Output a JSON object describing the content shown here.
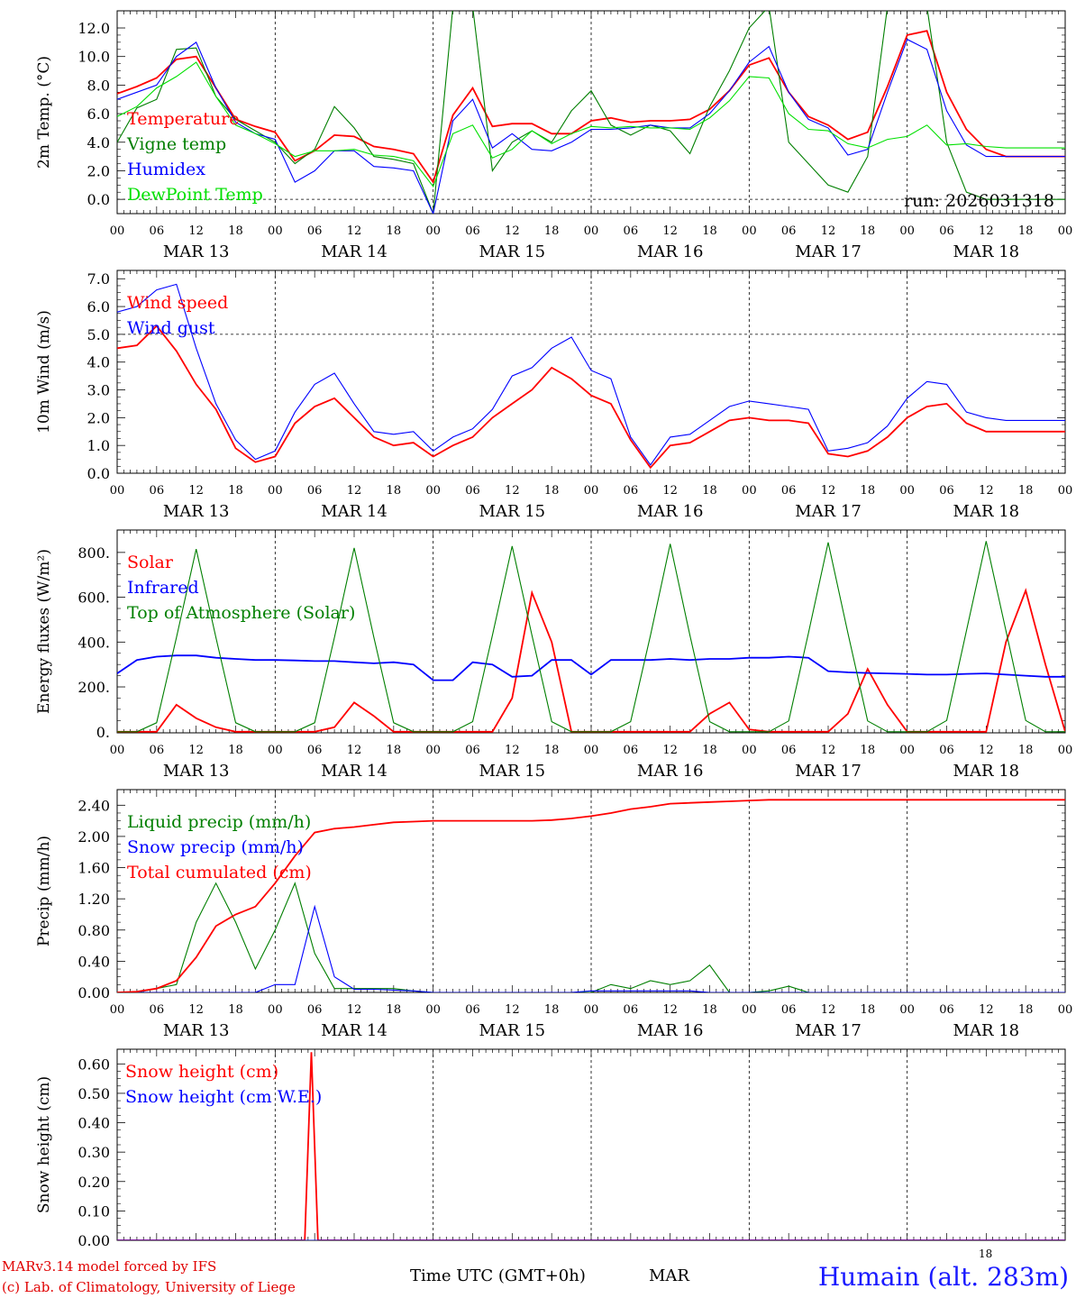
{
  "footer": {
    "model": "MARv3.14 model forced by IFS",
    "credit": "(c) Lab. of Climatology, University of Liege",
    "axis_title": "Time UTC (GMT+0h)",
    "month": "MAR",
    "day": "18",
    "station": "Humain (alt. 283m)"
  },
  "colors": {
    "red": "#ff0000",
    "green": "#007f00",
    "blue": "#0000ff",
    "lightgreen": "#00e000"
  },
  "x_axis": {
    "hour_ticks": [
      "00",
      "06",
      "12",
      "18"
    ],
    "days": [
      "MAR 13",
      "MAR 14",
      "MAR 15",
      "MAR 16",
      "MAR 17",
      "MAR 18"
    ],
    "end_label": "00"
  },
  "chart_data": [
    {
      "type": "line",
      "ylabel": "2m Temp. (°C)",
      "ylim": [
        -1,
        13.2
      ],
      "yticks": [
        "0.0",
        "2.0",
        "4.0",
        "6.0",
        "8.0",
        "10.0",
        "12.0"
      ],
      "ytick_values": [
        0,
        2,
        4,
        6,
        8,
        10,
        12
      ],
      "ref_line": 0,
      "annotation": "run: 2026031318",
      "x_hours": [
        0,
        3,
        6,
        9,
        12,
        15,
        18,
        21,
        24,
        27,
        30,
        33,
        36,
        39,
        42,
        45,
        48,
        51,
        54,
        57,
        60,
        63,
        66,
        69,
        72,
        75,
        78,
        81,
        84,
        87,
        90,
        93,
        96,
        99,
        102,
        105,
        108,
        111,
        114,
        117,
        120,
        123,
        126,
        129,
        132,
        135,
        138,
        141,
        144
      ],
      "series": [
        {
          "name": "Temperature",
          "color": "red",
          "values": [
            7.4,
            7.9,
            8.5,
            9.8,
            10.0,
            7.8,
            5.6,
            5.1,
            4.7,
            2.7,
            3.4,
            4.5,
            4.4,
            3.7,
            3.5,
            3.2,
            1.2,
            5.9,
            7.8,
            5.1,
            5.3,
            5.3,
            4.6,
            4.6,
            5.5,
            5.7,
            5.4,
            5.5,
            5.5,
            5.6,
            6.3,
            7.6,
            9.4,
            9.9,
            7.5,
            5.8,
            5.2,
            4.2,
            4.7,
            7.9,
            11.5,
            11.8,
            7.5,
            4.9,
            3.5,
            3.0,
            3.0,
            3.0,
            3.0
          ]
        },
        {
          "name": "Vigne temp",
          "color": "green",
          "values": [
            4.0,
            6.4,
            7.0,
            10.5,
            10.6,
            7.2,
            5.6,
            4.8,
            4.0,
            2.5,
            3.5,
            6.5,
            5.0,
            3.0,
            2.8,
            2.5,
            -1.0,
            13.5,
            13.5,
            2.0,
            4.0,
            4.8,
            4.0,
            6.2,
            7.6,
            5.2,
            4.5,
            5.2,
            4.8,
            3.2,
            6.5,
            9.0,
            12.0,
            13.5,
            4.0,
            2.5,
            1.0,
            0.5,
            3.0,
            13.5,
            13.5,
            13.5,
            4.0,
            0.5,
            0.0,
            0.0,
            0.0,
            0.0,
            0.0
          ]
        },
        {
          "name": "Humidex",
          "color": "blue",
          "values": [
            7.0,
            7.5,
            8.0,
            10.0,
            11.0,
            7.8,
            5.4,
            4.6,
            4.2,
            1.2,
            2.0,
            3.4,
            3.4,
            2.3,
            2.2,
            2.0,
            -1.0,
            5.5,
            7.0,
            3.6,
            4.6,
            3.5,
            3.4,
            4.0,
            4.9,
            4.9,
            5.0,
            5.2,
            5.0,
            5.0,
            6.0,
            7.6,
            9.6,
            10.7,
            7.5,
            5.6,
            5.0,
            3.1,
            3.5,
            7.5,
            11.2,
            10.5,
            6.2,
            3.8,
            3.0,
            3.0,
            3.0,
            3.0,
            3.0
          ]
        },
        {
          "name": "DewPoint Temp",
          "color": "lightgreen",
          "values": [
            5.8,
            6.5,
            7.8,
            8.6,
            9.6,
            7.2,
            5.2,
            4.6,
            3.9,
            3.0,
            3.4,
            3.4,
            3.5,
            3.1,
            3.0,
            2.7,
            0.9,
            4.6,
            5.2,
            2.9,
            3.5,
            4.8,
            3.9,
            4.6,
            5.1,
            5.0,
            5.1,
            5.0,
            5.0,
            4.9,
            5.7,
            6.9,
            8.6,
            8.5,
            6.0,
            4.9,
            4.8,
            3.9,
            3.6,
            4.2,
            4.4,
            5.2,
            3.8,
            3.9,
            3.7,
            3.6,
            3.6,
            3.6,
            3.6
          ]
        }
      ]
    },
    {
      "type": "line",
      "ylabel": "10m Wind (m/s)",
      "ylim": [
        0,
        7.3
      ],
      "yticks": [
        "0.0",
        "1.0",
        "2.0",
        "3.0",
        "4.0",
        "5.0",
        "6.0",
        "7.0"
      ],
      "ytick_values": [
        0,
        1,
        2,
        3,
        4,
        5,
        6,
        7
      ],
      "ref_line": 5,
      "x_hours": [
        0,
        3,
        6,
        9,
        12,
        15,
        18,
        21,
        24,
        27,
        30,
        33,
        36,
        39,
        42,
        45,
        48,
        51,
        54,
        57,
        60,
        63,
        66,
        69,
        72,
        75,
        78,
        81,
        84,
        87,
        90,
        93,
        96,
        99,
        102,
        105,
        108,
        111,
        114,
        117,
        120,
        123,
        126,
        129,
        132,
        135,
        138,
        141,
        144
      ],
      "series": [
        {
          "name": "Wind speed",
          "color": "red",
          "values": [
            4.5,
            4.6,
            5.3,
            4.4,
            3.2,
            2.3,
            0.9,
            0.4,
            0.6,
            1.8,
            2.4,
            2.7,
            2.0,
            1.3,
            1.0,
            1.1,
            0.6,
            1.0,
            1.3,
            2.0,
            2.5,
            3.0,
            3.8,
            3.4,
            2.8,
            2.5,
            1.2,
            0.2,
            1.0,
            1.1,
            1.5,
            1.9,
            2.0,
            1.9,
            1.9,
            1.8,
            0.7,
            0.6,
            0.8,
            1.3,
            2.0,
            2.4,
            2.5,
            1.8,
            1.5,
            1.5,
            1.5,
            1.5,
            1.5
          ]
        },
        {
          "name": "Wind gust",
          "color": "blue",
          "values": [
            5.8,
            6.0,
            6.6,
            6.8,
            4.5,
            2.5,
            1.2,
            0.5,
            0.8,
            2.2,
            3.2,
            3.6,
            2.5,
            1.5,
            1.4,
            1.5,
            0.8,
            1.3,
            1.6,
            2.3,
            3.5,
            3.8,
            4.5,
            4.9,
            3.7,
            3.4,
            1.3,
            0.3,
            1.3,
            1.4,
            1.9,
            2.4,
            2.6,
            2.5,
            2.4,
            2.3,
            0.8,
            0.9,
            1.1,
            1.7,
            2.7,
            3.3,
            3.2,
            2.2,
            2.0,
            1.9,
            1.9,
            1.9,
            1.9
          ]
        }
      ]
    },
    {
      "type": "line",
      "ylabel": "Energy fluxes (W/m²)",
      "ylim": [
        -5,
        900
      ],
      "yticks": [
        "0.",
        "200.",
        "400.",
        "600.",
        "800."
      ],
      "ytick_values": [
        0,
        200,
        400,
        600,
        800
      ],
      "x_hours": [
        0,
        3,
        6,
        9,
        12,
        15,
        18,
        21,
        24,
        27,
        30,
        33,
        36,
        39,
        42,
        45,
        48,
        51,
        54,
        57,
        60,
        63,
        66,
        69,
        72,
        75,
        78,
        81,
        84,
        87,
        90,
        93,
        96,
        99,
        102,
        105,
        108,
        111,
        114,
        117,
        120,
        123,
        126,
        129,
        132,
        135,
        138,
        141,
        144
      ],
      "series": [
        {
          "name": "Solar",
          "color": "red",
          "values": [
            0,
            0,
            0,
            120,
            60,
            20,
            0,
            0,
            0,
            0,
            0,
            20,
            130,
            70,
            0,
            0,
            0,
            0,
            0,
            0,
            150,
            620,
            400,
            0,
            0,
            0,
            0,
            0,
            0,
            0,
            80,
            130,
            10,
            0,
            0,
            0,
            0,
            80,
            280,
            120,
            0,
            0,
            0,
            0,
            0,
            400,
            630,
            300,
            0
          ]
        },
        {
          "name": "Infrared",
          "color": "blue",
          "values": [
            260,
            320,
            335,
            340,
            340,
            330,
            325,
            320,
            320,
            318,
            315,
            315,
            310,
            305,
            310,
            300,
            230,
            230,
            310,
            300,
            245,
            250,
            320,
            320,
            255,
            320,
            320,
            320,
            325,
            320,
            325,
            325,
            330,
            330,
            335,
            330,
            270,
            265,
            262,
            260,
            258,
            255,
            255,
            258,
            260,
            255,
            250,
            245,
            245
          ]
        },
        {
          "name": "Top of Atmosphere (Solar)",
          "color": "green",
          "values": [
            0,
            0,
            40,
            420,
            815,
            420,
            40,
            0,
            0,
            0,
            40,
            420,
            820,
            420,
            40,
            0,
            0,
            0,
            45,
            430,
            828,
            430,
            45,
            0,
            0,
            0,
            45,
            430,
            838,
            430,
            45,
            0,
            0,
            0,
            48,
            440,
            845,
            440,
            48,
            0,
            0,
            0,
            50,
            450,
            850,
            450,
            50,
            0,
            0
          ]
        }
      ]
    },
    {
      "type": "line",
      "ylabel": "Precip (mm/h)",
      "ylim": [
        0,
        2.6
      ],
      "yticks": [
        "0.00",
        "0.40",
        "0.80",
        "1.20",
        "1.60",
        "2.00",
        "2.40"
      ],
      "ytick_values": [
        0,
        0.4,
        0.8,
        1.2,
        1.6,
        2.0,
        2.4
      ],
      "x_hours": [
        0,
        3,
        6,
        9,
        12,
        15,
        18,
        21,
        24,
        27,
        30,
        33,
        36,
        39,
        42,
        45,
        48,
        51,
        54,
        57,
        60,
        63,
        66,
        69,
        72,
        75,
        78,
        81,
        84,
        87,
        90,
        93,
        96,
        99,
        102,
        105,
        108,
        111,
        114,
        117,
        120,
        123,
        126,
        129,
        132,
        135,
        138,
        141,
        144
      ],
      "series": [
        {
          "name": "Liquid precip (mm/h)",
          "color": "green",
          "values": [
            0,
            0,
            0.05,
            0.1,
            0.9,
            1.4,
            0.9,
            0.3,
            0.8,
            1.4,
            0.5,
            0.05,
            0.05,
            0.05,
            0.05,
            0.02,
            0,
            0,
            0,
            0,
            0,
            0,
            0,
            0,
            0,
            0.1,
            0.05,
            0.15,
            0.1,
            0.15,
            0.35,
            0,
            0,
            0.02,
            0.08,
            0,
            0,
            0,
            0,
            0,
            0,
            0,
            0,
            0,
            0,
            0,
            0,
            0,
            0
          ]
        },
        {
          "name": "Snow precip (mm/h)",
          "color": "blue",
          "values": [
            0,
            0,
            0,
            0,
            0,
            0,
            0,
            0,
            0.1,
            0.1,
            1.1,
            0.2,
            0.04,
            0.04,
            0.03,
            0.02,
            0,
            0,
            0,
            0,
            0,
            0,
            0,
            0,
            0.02,
            0.02,
            0.02,
            0.02,
            0.02,
            0.02,
            0,
            0,
            0,
            0,
            0,
            0,
            0,
            0,
            0,
            0,
            0,
            0,
            0,
            0,
            0,
            0,
            0,
            0,
            0
          ]
        },
        {
          "name": "Total cumulated (cm)",
          "color": "red",
          "values": [
            0,
            0.01,
            0.05,
            0.15,
            0.45,
            0.85,
            1.0,
            1.1,
            1.4,
            1.75,
            2.05,
            2.1,
            2.12,
            2.15,
            2.18,
            2.19,
            2.2,
            2.2,
            2.2,
            2.2,
            2.2,
            2.2,
            2.21,
            2.23,
            2.26,
            2.3,
            2.35,
            2.38,
            2.42,
            2.43,
            2.44,
            2.45,
            2.46,
            2.47,
            2.47,
            2.47,
            2.47,
            2.47,
            2.47,
            2.47,
            2.47,
            2.47,
            2.47,
            2.47,
            2.47,
            2.47,
            2.47,
            2.47,
            2.47
          ]
        }
      ]
    },
    {
      "type": "line",
      "ylabel": "Snow height (cm)",
      "ylim": [
        0,
        0.65
      ],
      "yticks": [
        "0.00",
        "0.10",
        "0.20",
        "0.30",
        "0.40",
        "0.50",
        "0.60"
      ],
      "ytick_values": [
        0,
        0.1,
        0.2,
        0.3,
        0.4,
        0.5,
        0.6
      ],
      "x_hours": [
        0,
        28.5,
        29.5,
        30.5,
        144
      ],
      "series": [
        {
          "name": "Snow height (cm)",
          "color": "red",
          "values": [
            0,
            0,
            0.64,
            0,
            0
          ]
        },
        {
          "name": "Snow height (cm W.E.)",
          "color": "blue",
          "values": [
            0,
            0,
            0,
            0,
            0
          ]
        }
      ]
    }
  ]
}
